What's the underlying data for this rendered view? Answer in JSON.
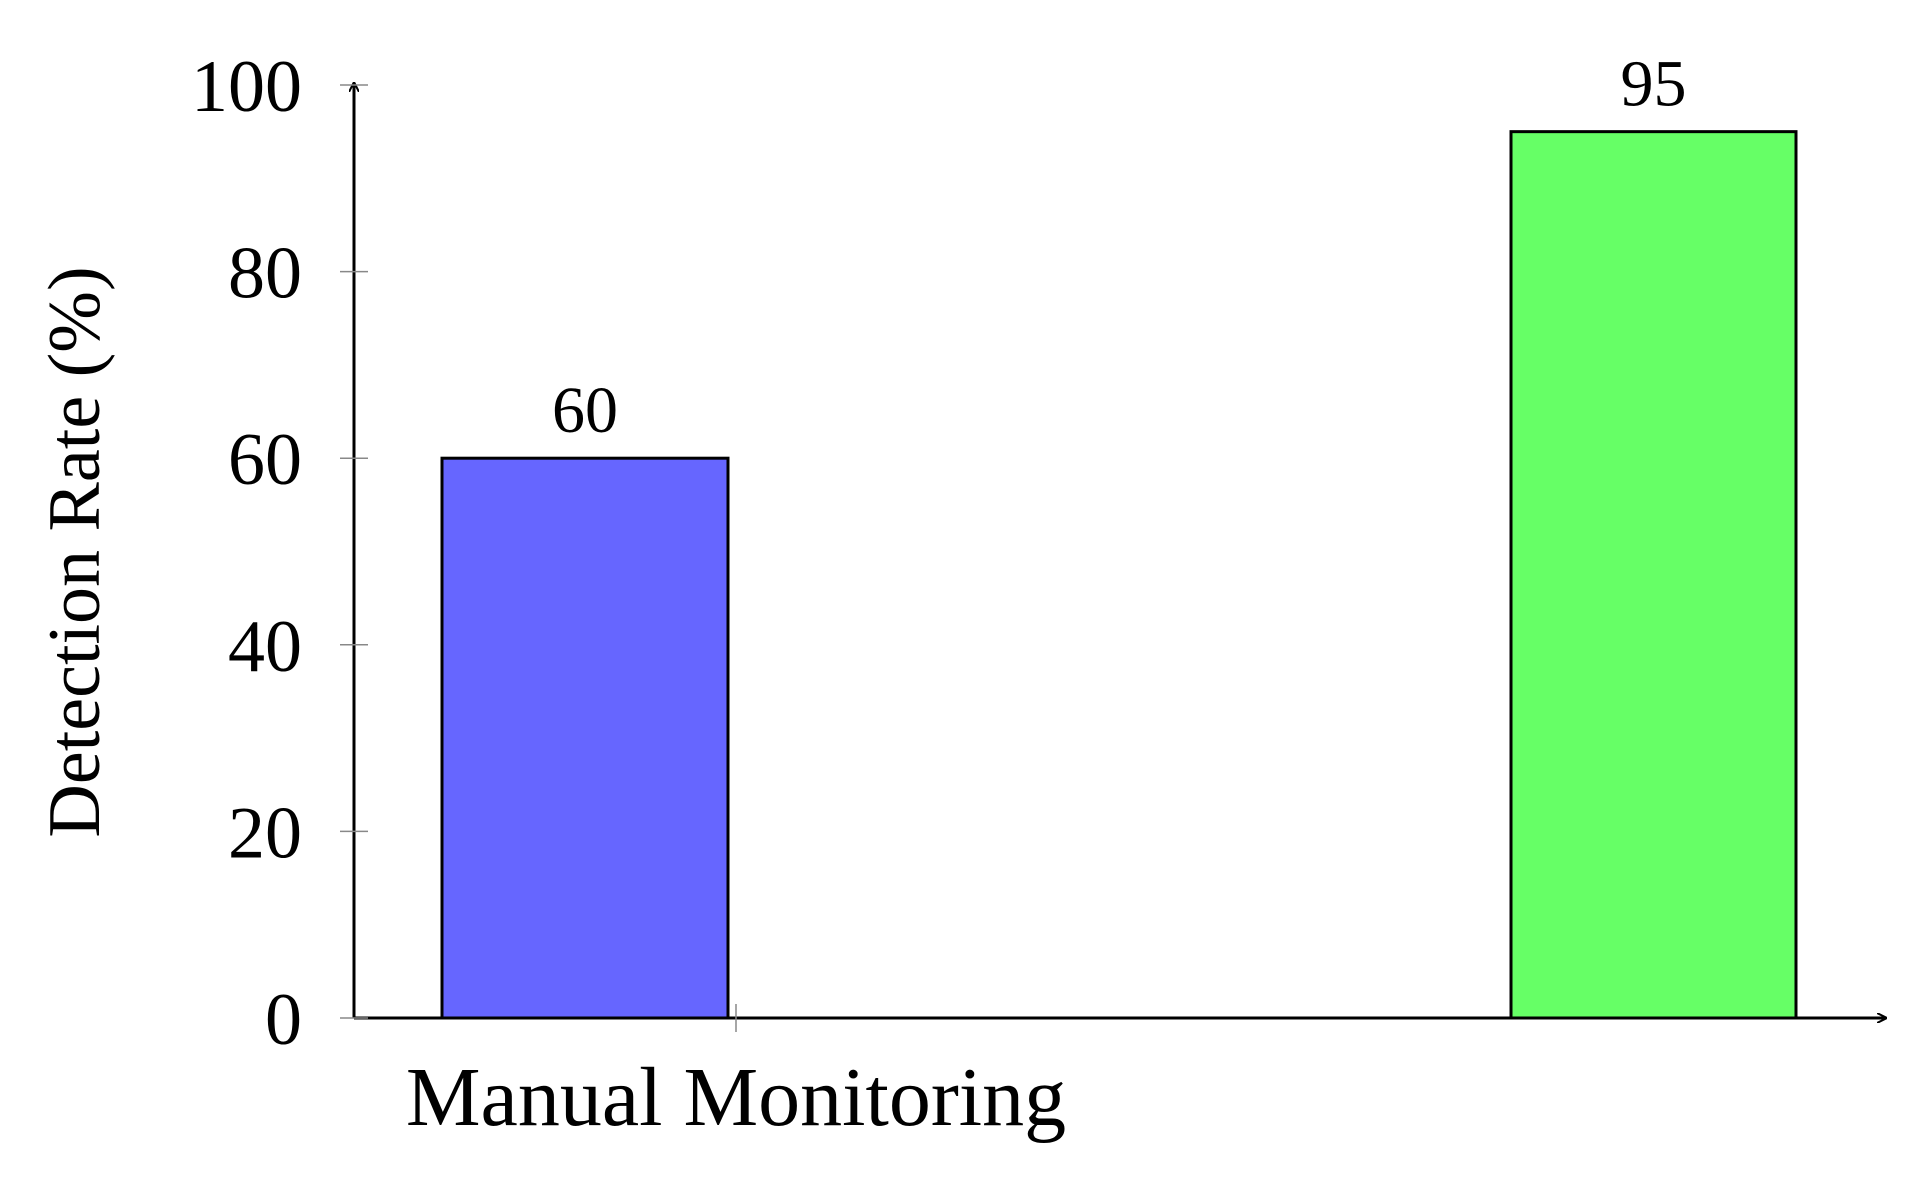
{
  "chart_data": {
    "type": "bar",
    "y_label": "Detection Rate (%)",
    "categories": [
      "Manual Monitoring",
      null
    ],
    "values": [
      60,
      95
    ],
    "colors": [
      "#6666ff",
      "#66ff66"
    ],
    "ylim": [
      0,
      100
    ],
    "yticks": [
      0,
      20,
      40,
      60,
      80,
      100
    ]
  }
}
